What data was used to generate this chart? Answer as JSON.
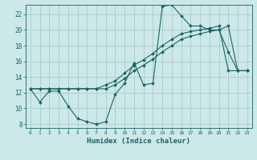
{
  "xlabel": "Humidex (Indice chaleur)",
  "bg_color": "#cde8e8",
  "grid_color": "#aacccc",
  "line_color": "#1a6464",
  "xlim": [
    -0.5,
    23.5
  ],
  "ylim": [
    7.5,
    23.2
  ],
  "xticks": [
    0,
    1,
    2,
    3,
    4,
    5,
    6,
    7,
    8,
    9,
    10,
    11,
    12,
    13,
    14,
    15,
    16,
    17,
    18,
    19,
    20,
    21,
    22,
    23
  ],
  "yticks": [
    8,
    10,
    12,
    14,
    16,
    18,
    20,
    22
  ],
  "hours": [
    0,
    1,
    2,
    3,
    4,
    5,
    6,
    7,
    8,
    9,
    10,
    11,
    12,
    13,
    14,
    15,
    16,
    17,
    18,
    19,
    20,
    21,
    22,
    23
  ],
  "line1": [
    12.5,
    10.8,
    12.2,
    12.2,
    10.3,
    8.7,
    8.3,
    8.0,
    8.3,
    11.8,
    13.2,
    15.8,
    13.0,
    13.2,
    23.0,
    23.2,
    21.8,
    20.5,
    20.5,
    20.0,
    20.0,
    17.2,
    14.8,
    14.8
  ],
  "line2": [
    12.5,
    12.5,
    12.5,
    12.5,
    12.5,
    12.5,
    12.5,
    12.5,
    13.0,
    13.5,
    14.5,
    15.5,
    16.2,
    17.0,
    18.0,
    18.8,
    19.5,
    19.8,
    20.0,
    20.2,
    20.5,
    14.8,
    14.8,
    14.8
  ],
  "line3": [
    12.5,
    12.5,
    12.5,
    12.5,
    12.5,
    12.5,
    12.5,
    12.5,
    12.5,
    13.0,
    13.8,
    14.8,
    15.5,
    16.3,
    17.2,
    18.0,
    18.8,
    19.2,
    19.5,
    19.8,
    20.0,
    20.5,
    14.8,
    14.8
  ]
}
